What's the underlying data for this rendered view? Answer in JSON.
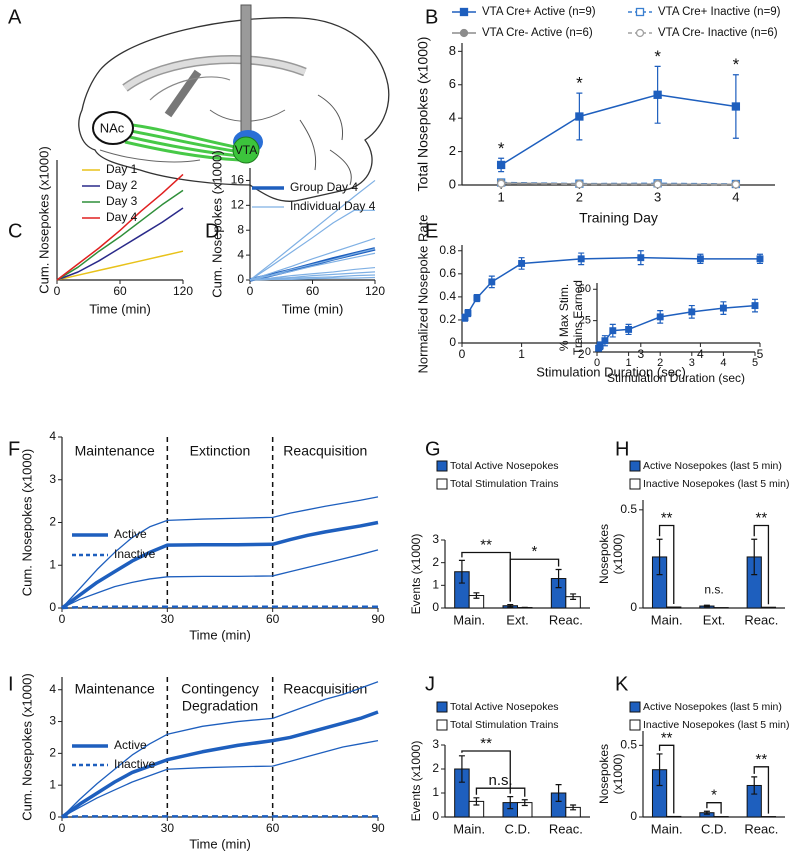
{
  "chart_data": [
    {
      "type": "diagram",
      "panel": "A",
      "labels": [
        "NAc",
        "VTA"
      ]
    },
    {
      "type": "line",
      "panel": "B",
      "x": [
        1,
        2,
        3,
        4
      ],
      "xlim": [
        0.5,
        4.5
      ],
      "xticks": [
        1,
        2,
        3,
        4
      ],
      "ylim": [
        0,
        8.5
      ],
      "yticks": [
        0,
        2,
        4,
        6,
        8
      ],
      "xlabel": "Training Day",
      "ylabel": "Total Nosepokes (x1000)",
      "series": [
        {
          "name": "VTA Cre+ Active (n=9)",
          "color": "#1e5fbe",
          "marker": "square",
          "filled": true,
          "dashed": false,
          "values": [
            1.2,
            4.1,
            5.4,
            4.7
          ],
          "errors": [
            0.4,
            1.4,
            1.7,
            1.9
          ]
        },
        {
          "name": "VTA Cre+ Inactive (n=9)",
          "color": "#3a7fd0",
          "marker": "square",
          "filled": false,
          "dashed": true,
          "values": [
            0.15,
            0.08,
            0.1,
            0.06
          ],
          "errors": [
            0.05,
            0.04,
            0.05,
            0.03
          ]
        },
        {
          "name": "VTA Cre- Active (n=6)",
          "color": "#8c8c8c",
          "marker": "circle",
          "filled": true,
          "dashed": false,
          "values": [
            0.12,
            0.06,
            0.05,
            0.04
          ]
        },
        {
          "name": "VTA Cre- Inactive (n=6)",
          "color": "#a0a0a0",
          "marker": "circle",
          "filled": false,
          "dashed": true,
          "values": [
            0.08,
            0.04,
            0.04,
            0.03
          ]
        }
      ],
      "annotations": [
        "*",
        "*",
        "*",
        "*"
      ]
    },
    {
      "type": "line",
      "panel": "C",
      "x": [
        0,
        20,
        40,
        60,
        80,
        100,
        120
      ],
      "xlim": [
        0,
        120
      ],
      "xticks": [
        0,
        60,
        120
      ],
      "ylim": [
        0,
        7.5
      ],
      "xlabel": "Time (min)",
      "ylabel": "Cum. Nosepokes (x1000)",
      "series": [
        {
          "name": "Day 1",
          "color": "#e8c21a",
          "values": [
            0,
            0.3,
            0.6,
            0.9,
            1.2,
            1.5,
            1.8
          ]
        },
        {
          "name": "Day 2",
          "color": "#2a2a8a",
          "values": [
            0,
            0.5,
            1.2,
            2.0,
            2.8,
            3.6,
            4.5
          ]
        },
        {
          "name": "Day 3",
          "color": "#2f8f3a",
          "values": [
            0,
            0.8,
            1.8,
            2.7,
            3.7,
            4.7,
            5.6
          ]
        },
        {
          "name": "Day 4",
          "color": "#e02020",
          "values": [
            0,
            1.0,
            2.0,
            3.1,
            4.3,
            5.4,
            6.6
          ]
        }
      ]
    },
    {
      "type": "line",
      "panel": "D",
      "x": [
        0,
        20,
        40,
        60,
        80,
        100,
        120
      ],
      "xlim": [
        0,
        120
      ],
      "xticks": [
        0,
        60,
        120
      ],
      "ylim": [
        0,
        18
      ],
      "yticks": [
        0,
        4,
        8,
        12,
        16
      ],
      "xlabel": "Time (min)",
      "ylabel": "Cum. Nosepokes (x1000)",
      "series": [
        {
          "name": "Group Day 4",
          "color": "#1e5fbe",
          "width": 3.5,
          "values": [
            0,
            0.8,
            1.6,
            2.5,
            3.4,
            4.2,
            5.0
          ]
        },
        {
          "name": "Individual Day 4",
          "color": "#7fb0e4",
          "width": 1.2,
          "values": [
            [
              0,
              2.6,
              5.3,
              8,
              10.7,
              13.4,
              16
            ],
            [
              0,
              2.2,
              4.5,
              6.8,
              9.2,
              11.2,
              11.2
            ],
            [
              0,
              1.1,
              2.2,
              3.4,
              4.5,
              5.6,
              6.7
            ],
            [
              0,
              0.8,
              1.7,
              2.5,
              3.3,
              4.2,
              5.0
            ],
            [
              0,
              0.7,
              1.4,
              2.2,
              2.9,
              3.6,
              4.3
            ],
            [
              0,
              0.3,
              0.7,
              1.0,
              1.3,
              1.7,
              2.0
            ],
            [
              0,
              0.2,
              0.4,
              0.7,
              0.9,
              1.1,
              1.3
            ],
            [
              0,
              0.1,
              0.3,
              0.4,
              0.5,
              0.7,
              0.8
            ],
            [
              0,
              0.1,
              0.1,
              0.2,
              0.3,
              0.3,
              0.4
            ]
          ]
        }
      ]
    },
    {
      "type": "line",
      "panel": "E",
      "x": [
        0.05,
        0.1,
        0.25,
        0.5,
        1,
        2,
        3,
        4,
        5
      ],
      "xlim": [
        0,
        5
      ],
      "xticks": [
        0,
        1,
        2,
        3,
        4,
        5
      ],
      "ylim": [
        0,
        0.85
      ],
      "yticks": [
        0,
        0.2,
        0.4,
        0.6,
        0.8
      ],
      "xlabel": "Stimulation Duration (sec)",
      "ylabel": "Normalized Nosepoke Rate",
      "series": [
        {
          "color": "#1e5fbe",
          "marker": "square",
          "filled": true,
          "values": [
            0.22,
            0.26,
            0.39,
            0.53,
            0.69,
            0.73,
            0.74,
            0.73,
            0.73
          ],
          "errors": [
            0.03,
            0.03,
            0.03,
            0.05,
            0.05,
            0.05,
            0.06,
            0.04,
            0.04
          ]
        }
      ]
    },
    {
      "type": "line",
      "x": [
        0.05,
        0.1,
        0.25,
        0.5,
        1,
        2,
        3,
        4,
        5
      ],
      "xlim": [
        0,
        5
      ],
      "xticks": [
        0,
        1,
        2,
        3,
        4,
        5
      ],
      "ylim": [
        0,
        55
      ],
      "yticks": [
        0,
        25,
        50
      ],
      "xlabel": "Stimulation Duration (sec)",
      "ylabel": [
        "% Max Stim.",
        "Trains Earned"
      ],
      "series": [
        {
          "color": "#1e5fbe",
          "marker": "square",
          "filled": true,
          "values": [
            3,
            5,
            9,
            17,
            18,
            28,
            32,
            35,
            37
          ],
          "errors": [
            2,
            3,
            4,
            5,
            4,
            5,
            5,
            5,
            5
          ]
        }
      ]
    },
    {
      "type": "line",
      "panel": "F",
      "x": [
        0,
        5,
        10,
        15,
        20,
        25,
        30,
        40,
        50,
        60,
        65,
        70,
        75,
        80,
        85,
        90
      ],
      "xlim": [
        0,
        90
      ],
      "xticks": [
        0,
        30,
        60,
        90
      ],
      "ylim": [
        0,
        4
      ],
      "yticks": [
        0,
        1,
        2,
        3,
        4
      ],
      "xlabel": "Time (min)",
      "ylabel": "Cum. Nosepokes (x1000)",
      "dividers": [
        30,
        60
      ],
      "sections": [
        [
          "Maintenance"
        ],
        [
          "Extinction"
        ],
        [
          "Reacquisition"
        ]
      ],
      "series": [
        {
          "name": "Active",
          "color": "#1e5fbe",
          "width": 3.5,
          "values": [
            0,
            0.3,
            0.6,
            0.85,
            1.1,
            1.3,
            1.47,
            1.48,
            1.48,
            1.49,
            1.6,
            1.7,
            1.78,
            1.85,
            1.92,
            2.0
          ],
          "upper": [
            0,
            0.45,
            0.9,
            1.3,
            1.65,
            1.9,
            2.05,
            2.08,
            2.1,
            2.12,
            2.22,
            2.3,
            2.38,
            2.45,
            2.52,
            2.6
          ],
          "lower": [
            0,
            0.2,
            0.35,
            0.5,
            0.6,
            0.68,
            0.73,
            0.74,
            0.74,
            0.75,
            0.85,
            0.95,
            1.05,
            1.15,
            1.25,
            1.36
          ]
        },
        {
          "name": "Inactive",
          "color": "#1e5fbe",
          "width": 2.5,
          "dashed": true,
          "values": [
            0,
            0.02,
            0.02,
            0.03,
            0.03,
            0.03,
            0.03,
            0.03,
            0.03,
            0.03,
            0.03,
            0.03,
            0.03,
            0.03,
            0.03,
            0.03
          ]
        }
      ]
    },
    {
      "type": "bar",
      "panel": "G",
      "categories": [
        "Main.",
        "Ext.",
        "Reac."
      ],
      "ylim": [
        0,
        3
      ],
      "yticks": [
        0,
        1,
        2,
        3
      ],
      "ylabel": "Events (x1000)",
      "series": [
        {
          "name": "Total Active Nosepokes",
          "color": "#1e5fbe",
          "values": [
            1.6,
            0.1,
            1.3
          ],
          "errors": [
            0.5,
            0.05,
            0.4
          ]
        },
        {
          "name": "Total Stimulation Trains",
          "color": "#ffffff",
          "values": [
            0.55,
            0.02,
            0.5
          ],
          "errors": [
            0.12,
            0.01,
            0.12
          ]
        }
      ],
      "annotations": [
        "**",
        "*"
      ]
    },
    {
      "type": "bar",
      "panel": "H",
      "categories": [
        "Main.",
        "Ext.",
        "Reac."
      ],
      "ylim": [
        0,
        0.55
      ],
      "yticks": [
        0,
        0.5
      ],
      "ylabel": [
        "Nosepokes",
        "(x1000)"
      ],
      "series": [
        {
          "name": "Active Nosepokes (last 5 min)",
          "color": "#1e5fbe",
          "values": [
            0.26,
            0.01,
            0.26
          ],
          "errors": [
            0.09,
            0.004,
            0.09
          ]
        },
        {
          "name": "Inactive Nosepokes (last 5 min)",
          "color": "#ffffff",
          "values": [
            0.005,
            0.002,
            0.004
          ]
        }
      ],
      "annotations": [
        "**",
        "n.s.",
        "**"
      ]
    },
    {
      "type": "line",
      "panel": "I",
      "x": [
        0,
        5,
        10,
        15,
        20,
        25,
        30,
        40,
        50,
        60,
        65,
        70,
        75,
        80,
        85,
        90
      ],
      "xlim": [
        0,
        90
      ],
      "xticks": [
        0,
        30,
        60,
        90
      ],
      "ylim": [
        0,
        4.4
      ],
      "yticks": [
        0,
        1,
        2,
        3,
        4
      ],
      "xlabel": "Time (min)",
      "ylabel": "Cum. Nosepokes (x1000)",
      "dividers": [
        30,
        60
      ],
      "sections": [
        [
          "Maintenance"
        ],
        [
          "Contingency",
          "Degradation"
        ],
        [
          "Reacquisition"
        ]
      ],
      "series": [
        {
          "name": "Active",
          "color": "#1e5fbe",
          "width": 3.5,
          "values": [
            0,
            0.4,
            0.75,
            1.1,
            1.4,
            1.6,
            1.8,
            2.05,
            2.25,
            2.4,
            2.5,
            2.65,
            2.8,
            2.95,
            3.1,
            3.3
          ],
          "upper": [
            0,
            0.55,
            1.05,
            1.5,
            1.95,
            2.3,
            2.6,
            2.85,
            3.0,
            3.1,
            3.3,
            3.5,
            3.7,
            3.85,
            4.05,
            4.25
          ],
          "lower": [
            0,
            0.3,
            0.6,
            0.85,
            1.1,
            1.3,
            1.5,
            1.55,
            1.58,
            1.6,
            1.75,
            1.9,
            2.05,
            2.2,
            2.3,
            2.4
          ]
        },
        {
          "name": "Inactive",
          "color": "#1e5fbe",
          "width": 2.5,
          "dashed": true,
          "values": [
            0,
            0.02,
            0.02,
            0.02,
            0.02,
            0.02,
            0.02,
            0.02,
            0.02,
            0.02,
            0.02,
            0.02,
            0.02,
            0.02,
            0.02,
            0.02
          ]
        }
      ]
    },
    {
      "type": "bar",
      "panel": "J",
      "categories": [
        "Main.",
        "C.D.",
        "Reac."
      ],
      "ylim": [
        0,
        3
      ],
      "yticks": [
        0,
        1,
        2,
        3
      ],
      "ylabel": "Events (x1000)",
      "series": [
        {
          "name": "Total Active Nosepokes",
          "color": "#1e5fbe",
          "values": [
            2.0,
            0.6,
            1.0
          ],
          "errors": [
            0.55,
            0.25,
            0.35
          ]
        },
        {
          "name": "Total Stimulation Trains",
          "color": "#ffffff",
          "values": [
            0.65,
            0.6,
            0.4
          ],
          "errors": [
            0.15,
            0.12,
            0.1
          ]
        }
      ],
      "annotations": [
        "**",
        "n.s."
      ]
    },
    {
      "type": "bar",
      "panel": "K",
      "categories": [
        "Main.",
        "C.D.",
        "Reac."
      ],
      "ylim": [
        0,
        0.6
      ],
      "yticks": [
        0,
        0.5
      ],
      "ylabel": [
        "Nosepokes",
        "(x1000)"
      ],
      "series": [
        {
          "name": "Active Nosepokes (last 5 min)",
          "color": "#1e5fbe",
          "values": [
            0.33,
            0.03,
            0.22
          ],
          "errors": [
            0.11,
            0.01,
            0.06
          ]
        },
        {
          "name": "Inactive Nosepokes (last 5 min)",
          "color": "#ffffff",
          "values": [
            0.004,
            0.003,
            0.003
          ]
        }
      ],
      "annotations": [
        "**",
        "*",
        "**"
      ]
    }
  ]
}
